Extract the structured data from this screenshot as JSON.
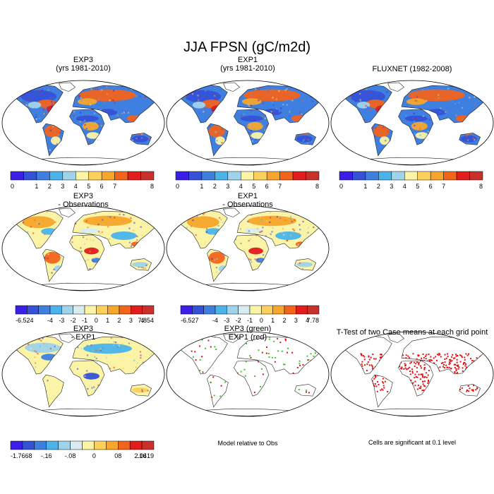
{
  "title": "JJA FPSN (gC/m2d)",
  "chart_data": [
    {
      "type": "map",
      "title_lines": [
        "EXP3",
        "(yrs 1981-2010)"
      ],
      "field": "absolute",
      "colorbar": {
        "labels": [
          "0",
          "1",
          "2",
          "3",
          "4",
          "5",
          "6",
          "7",
          "8"
        ],
        "colors": [
          "#3a1fe8",
          "#3552d6",
          "#3f7fe0",
          "#4ab3ea",
          "#9fd3ea",
          "#fbf3a6",
          "#fcd05a",
          "#f7a52b",
          "#f2641c",
          "#e21b1b",
          "#c8302b"
        ]
      }
    },
    {
      "type": "map",
      "title_lines": [
        "EXP1",
        "(yrs 1981-2010)"
      ],
      "field": "absolute",
      "colorbar": {
        "labels": [
          "0",
          "1",
          "2",
          "3",
          "4",
          "5",
          "6",
          "7",
          "8"
        ],
        "colors": [
          "#3a1fe8",
          "#3552d6",
          "#3f7fe0",
          "#4ab3ea",
          "#9fd3ea",
          "#fbf3a6",
          "#fcd05a",
          "#f7a52b",
          "#f2641c",
          "#e21b1b",
          "#c8302b"
        ]
      }
    },
    {
      "type": "map",
      "title_lines": [
        "FLUXNET (1982-2008)"
      ],
      "field": "absolute",
      "colorbar": {
        "labels": [
          "0",
          "1",
          "2",
          "3",
          "4",
          "5",
          "6",
          "7",
          "8"
        ],
        "colors": [
          "#3a1fe8",
          "#3552d6",
          "#3f7fe0",
          "#4ab3ea",
          "#9fd3ea",
          "#fbf3a6",
          "#fcd05a",
          "#f7a52b",
          "#f2641c",
          "#e21b1b",
          "#c8302b"
        ]
      }
    },
    {
      "type": "map",
      "title_lines": [
        "EXP3",
        "- Observations"
      ],
      "field": "difference",
      "colorbar": {
        "labels": [
          "-6.524",
          "",
          "-4",
          "-3",
          "-2",
          "-1",
          "0",
          "1",
          "2",
          "3",
          "4",
          "",
          "7.854"
        ],
        "colors": [
          "#3a1fe8",
          "#3552d6",
          "#3f7fe0",
          "#4ab3ea",
          "#9fd3ea",
          "#d8ecf2",
          "#fbf3a6",
          "#fcd05a",
          "#f7a52b",
          "#f2641c",
          "#e21b1b",
          "#c8302b"
        ]
      }
    },
    {
      "type": "map",
      "title_lines": [
        "EXP1",
        "- Observations"
      ],
      "field": "difference",
      "colorbar": {
        "labels": [
          "-6.527",
          "",
          "-4",
          "-3",
          "-2",
          "-1",
          "0",
          "1",
          "2",
          "3",
          "4",
          "",
          "7.78"
        ],
        "colors": [
          "#3a1fe8",
          "#3552d6",
          "#3f7fe0",
          "#4ab3ea",
          "#9fd3ea",
          "#d8ecf2",
          "#fbf3a6",
          "#fcd05a",
          "#f7a52b",
          "#f2641c",
          "#e21b1b",
          "#c8302b"
        ]
      }
    },
    {
      "type": "map",
      "title_lines": [
        "EXP3",
        "- EXP1"
      ],
      "field": "small-difference",
      "colorbar": {
        "labels": [
          "-1.7668",
          "",
          "-.16",
          "",
          "-.08",
          "",
          "0",
          "",
          "08",
          "",
          ".16",
          "",
          "2.0419"
        ],
        "colors": [
          "#3a1fe8",
          "#3552d6",
          "#3f7fe0",
          "#4ab3ea",
          "#9fd3ea",
          "#d8ecf2",
          "#fbf3a6",
          "#fcd05a",
          "#f7a52b",
          "#f2641c",
          "#e21b1b",
          "#c8302b"
        ]
      }
    },
    {
      "type": "map",
      "title_lines": [
        "EXP3 (green)",
        "EXP1 (red)"
      ],
      "field": "stippling-green-red",
      "note": "Model relative to Obs"
    },
    {
      "type": "map",
      "title_lines": [
        "T-Test of two Case means at each grid point"
      ],
      "field": "stippling-red",
      "note": "Cells are significant at 0.1 level"
    }
  ]
}
